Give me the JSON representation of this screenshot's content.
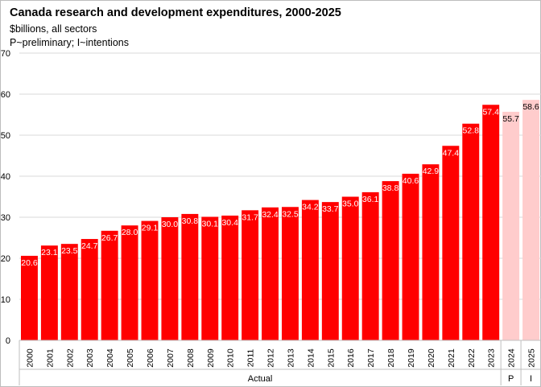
{
  "chart_data": {
    "type": "bar",
    "title": "Canada research and development expenditures,  2000-2025",
    "subtitle_lines": [
      "$billions, all sectors",
      "P~preliminary;  I~intentions"
    ],
    "categories": [
      "2000",
      "2001",
      "2002",
      "2003",
      "2004",
      "2005",
      "2006",
      "2007",
      "2008",
      "2009",
      "2010",
      "2011",
      "2012",
      "2013",
      "2014",
      "2015",
      "2016",
      "2017",
      "2018",
      "2019",
      "2020",
      "2021",
      "2022",
      "2023",
      "2024",
      "2025"
    ],
    "values": [
      20.6,
      23.1,
      23.5,
      24.7,
      26.7,
      28.0,
      29.1,
      30.0,
      30.8,
      30.1,
      30.4,
      31.7,
      32.4,
      32.5,
      34.2,
      33.7,
      35.0,
      36.1,
      38.8,
      40.6,
      42.9,
      47.4,
      52.8,
      57.4,
      55.7,
      58.6
    ],
    "data_labels": [
      "20.6",
      "23.1",
      "23.5",
      "24.7",
      "26.7",
      "28.0",
      "29.1",
      "30.0",
      "30.8",
      "30.1",
      "30.4",
      "31.7",
      "32.4",
      "32.5",
      "34.2",
      "33.7",
      "35.0",
      "36.1",
      "38.8",
      "40.6",
      "42.9",
      "47.4",
      "52.8",
      "57.4",
      "55.7",
      "58.6"
    ],
    "bar_groups": [
      "Actual",
      "Actual",
      "Actual",
      "Actual",
      "Actual",
      "Actual",
      "Actual",
      "Actual",
      "Actual",
      "Actual",
      "Actual",
      "Actual",
      "Actual",
      "Actual",
      "Actual",
      "Actual",
      "Actual",
      "Actual",
      "Actual",
      "Actual",
      "Actual",
      "Actual",
      "Actual",
      "Actual",
      "P",
      "I"
    ],
    "group_labels": [
      {
        "label": "Actual",
        "from": 0,
        "to": 23
      },
      {
        "label": "P",
        "from": 24,
        "to": 24
      },
      {
        "label": "I",
        "from": 25,
        "to": 25
      }
    ],
    "ylim": [
      0,
      70
    ],
    "yticks": [
      0,
      10,
      20,
      30,
      40,
      50,
      60,
      70
    ],
    "grid": true,
    "colors": {
      "actual_bar": "#ff0000",
      "projected_bar": "#ffcccc",
      "label_on_actual": "#ffffff",
      "label_on_projected": "#000000",
      "gridline": "#d9d9d9",
      "axis": "#bfbfbf"
    }
  }
}
